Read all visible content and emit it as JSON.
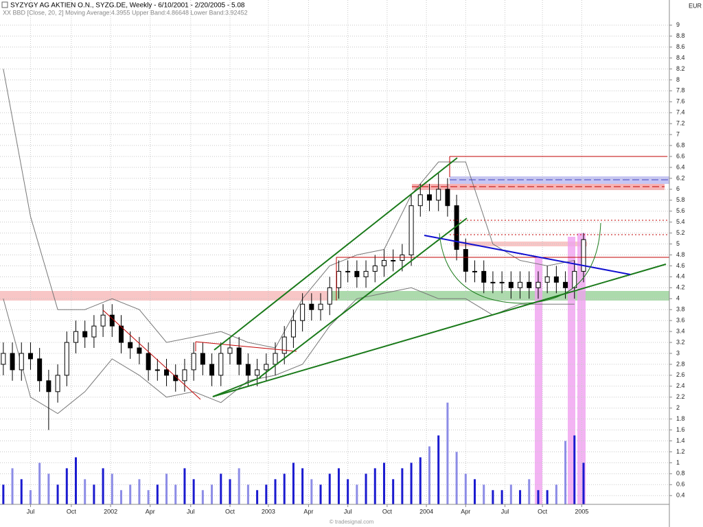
{
  "chart_data": {
    "type": "candlestick",
    "title": "SYZYGY AG AKTIEN O.N., SYZG.DE, Weekly - 6/10/2001 - 2/20/2005 - 5.08",
    "subtitle": "XX BBD [Close, 20, 2] Moving Average:4.3955 Upper Band:4.86648 Lower Band:3.92452",
    "currency": "EUR",
    "watermark": "© tradesignal.com",
    "xlim": [
      -1.1,
      220.4
    ],
    "ylim": [
      0.24,
      9.46
    ],
    "grid": true,
    "xticks": [
      {
        "value": 9,
        "label": "Jul"
      },
      {
        "value": 22.5,
        "label": "Oct"
      },
      {
        "value": 35.5,
        "label": "2002"
      },
      {
        "value": 48.6,
        "label": "Apr"
      },
      {
        "value": 62,
        "label": "Jul"
      },
      {
        "value": 75,
        "label": "Oct"
      },
      {
        "value": 87.7,
        "label": "2003"
      },
      {
        "value": 101,
        "label": "Apr"
      },
      {
        "value": 114,
        "label": "Jul"
      },
      {
        "value": 127,
        "label": "Oct"
      },
      {
        "value": 140,
        "label": "2004"
      },
      {
        "value": 153,
        "label": "Apr"
      },
      {
        "value": 166,
        "label": "Jul"
      },
      {
        "value": 178.4,
        "label": "Oct"
      },
      {
        "value": 191.4,
        "label": "2005"
      }
    ],
    "yticks": [
      9,
      8.8,
      8.6,
      8.4,
      8.2,
      8,
      7.8,
      7.6,
      7.4,
      7.2,
      7,
      6.8,
      6.6,
      6.4,
      6.2,
      6,
      5.8,
      5.6,
      5.4,
      5.2,
      5,
      4.8,
      4.6,
      4.4,
      4.2,
      4,
      3.8,
      3.6,
      3.4,
      3.2,
      3,
      2.8,
      2.6,
      2.4,
      2.2,
      2,
      1.8,
      1.6,
      1.4,
      1.2,
      1,
      0.8,
      0.6,
      0.4
    ],
    "x": [
      0,
      3,
      6,
      9,
      12,
      15,
      18,
      21,
      24,
      27,
      30,
      33,
      36,
      39,
      42,
      45,
      48,
      51,
      54,
      57,
      60,
      63,
      66,
      69,
      72,
      75,
      78,
      81,
      84,
      87,
      90,
      93,
      96,
      99,
      102,
      105,
      108,
      111,
      114,
      117,
      120,
      123,
      126,
      129,
      132,
      135,
      138,
      141,
      144,
      147,
      150,
      153,
      156,
      159,
      162,
      165,
      168,
      171,
      174,
      177,
      180,
      183,
      186,
      189,
      192
    ],
    "open": [
      2.8,
      3.0,
      2.7,
      3.0,
      2.9,
      2.5,
      2.3,
      2.6,
      3.2,
      3.4,
      3.3,
      3.5,
      3.7,
      3.5,
      3.2,
      3.1,
      3.0,
      2.7,
      2.7,
      2.6,
      2.5,
      2.7,
      3.0,
      2.8,
      2.6,
      3.0,
      3.1,
      2.8,
      2.6,
      2.7,
      2.8,
      3.0,
      3.3,
      3.6,
      3.9,
      3.8,
      3.9,
      4.2,
      4.5,
      4.5,
      4.4,
      4.5,
      4.6,
      4.7,
      4.7,
      4.8,
      5.7,
      5.9,
      5.8,
      6.0,
      5.7,
      4.9,
      4.5,
      4.5,
      4.3,
      4.3,
      4.3,
      4.2,
      4.3,
      4.2,
      4.3,
      4.4,
      4.3,
      4.2,
      4.5
    ],
    "high": [
      3.2,
      3.2,
      3.2,
      3.2,
      3.1,
      2.7,
      2.8,
      3.4,
      3.6,
      3.6,
      3.7,
      3.9,
      3.9,
      3.7,
      3.4,
      3.3,
      3.2,
      2.9,
      2.9,
      2.8,
      2.9,
      3.2,
      3.2,
      3.0,
      3.2,
      3.3,
      3.3,
      3.0,
      2.9,
      3.0,
      3.2,
      3.5,
      3.8,
      4.1,
      4.1,
      4.1,
      4.4,
      4.7,
      4.7,
      4.7,
      4.7,
      4.8,
      4.9,
      4.9,
      5.0,
      5.9,
      6.1,
      6.1,
      6.3,
      6.2,
      5.9,
      5.1,
      4.7,
      4.7,
      4.5,
      4.5,
      4.5,
      4.5,
      4.5,
      4.5,
      4.6,
      4.6,
      4.5,
      4.7,
      5.2
    ],
    "low": [
      2.6,
      2.5,
      2.5,
      2.7,
      2.3,
      1.6,
      2.1,
      2.4,
      3.0,
      3.1,
      3.1,
      3.3,
      3.3,
      3.0,
      2.9,
      2.8,
      2.5,
      2.5,
      2.4,
      2.3,
      2.3,
      2.5,
      2.6,
      2.4,
      2.4,
      2.8,
      2.6,
      2.4,
      2.4,
      2.5,
      2.6,
      2.8,
      3.1,
      3.4,
      3.6,
      3.6,
      3.7,
      4.0,
      4.3,
      4.2,
      4.2,
      4.3,
      4.4,
      4.5,
      4.5,
      4.6,
      5.5,
      5.6,
      5.6,
      5.5,
      4.7,
      4.3,
      4.3,
      4.1,
      4.1,
      4.1,
      4.0,
      4.0,
      4.0,
      4.0,
      4.1,
      4.1,
      4.0,
      4.0,
      4.3
    ],
    "close": [
      3.0,
      2.7,
      3.0,
      2.9,
      2.5,
      2.3,
      2.6,
      3.2,
      3.4,
      3.3,
      3.5,
      3.7,
      3.5,
      3.2,
      3.1,
      3.0,
      2.7,
      2.7,
      2.6,
      2.5,
      2.7,
      3.0,
      2.8,
      2.6,
      3.0,
      3.1,
      2.8,
      2.6,
      2.7,
      2.8,
      3.0,
      3.3,
      3.6,
      3.9,
      3.8,
      3.9,
      4.2,
      4.5,
      4.5,
      4.4,
      4.5,
      4.6,
      4.7,
      4.7,
      4.8,
      5.7,
      5.9,
      5.8,
      6.0,
      5.7,
      4.9,
      4.5,
      4.5,
      4.3,
      4.3,
      4.3,
      4.2,
      4.3,
      4.2,
      4.3,
      4.4,
      4.3,
      4.2,
      4.5,
      5.08
    ],
    "volume": [
      0.6,
      0.9,
      0.7,
      0.5,
      1.0,
      0.8,
      0.6,
      0.9,
      1.1,
      0.7,
      0.6,
      0.9,
      0.8,
      0.5,
      0.6,
      0.7,
      0.5,
      0.6,
      0.8,
      0.6,
      0.9,
      0.7,
      0.5,
      0.6,
      0.8,
      0.7,
      0.9,
      0.6,
      0.5,
      0.6,
      0.7,
      0.8,
      1.0,
      0.9,
      0.7,
      0.6,
      0.8,
      0.9,
      0.7,
      0.6,
      0.8,
      0.9,
      1.0,
      0.7,
      0.9,
      1.0,
      1.1,
      1.3,
      1.5,
      2.1,
      1.2,
      0.8,
      0.7,
      0.6,
      0.5,
      0.5,
      0.6,
      0.5,
      0.7,
      0.5,
      0.5,
      0.6,
      1.4,
      1.5,
      1.0
    ],
    "upper_band": {
      "x": [
        0,
        9,
        18,
        27,
        36,
        45,
        54,
        63,
        72,
        81,
        90,
        99,
        108,
        117,
        126,
        135,
        144,
        153,
        162,
        171,
        180,
        189
      ],
      "values": [
        8.2,
        5.5,
        3.8,
        3.8,
        4.0,
        3.8,
        3.2,
        3.3,
        3.4,
        3.2,
        3.1,
        4.0,
        4.6,
        4.8,
        4.9,
        5.9,
        6.5,
        6.5,
        5.0,
        4.7,
        4.6,
        4.7
      ]
    },
    "lower_band": {
      "x": [
        0,
        9,
        18,
        27,
        36,
        45,
        54,
        63,
        72,
        81,
        90,
        99,
        108,
        117,
        126,
        135,
        144,
        153,
        162,
        171,
        180,
        189
      ],
      "values": [
        4.0,
        2.2,
        1.9,
        2.3,
        2.9,
        2.6,
        2.2,
        2.3,
        2.1,
        2.5,
        2.6,
        2.8,
        3.5,
        4.0,
        4.1,
        4.2,
        4.0,
        4.0,
        3.7,
        3.9,
        3.9,
        3.9
      ]
    }
  }
}
